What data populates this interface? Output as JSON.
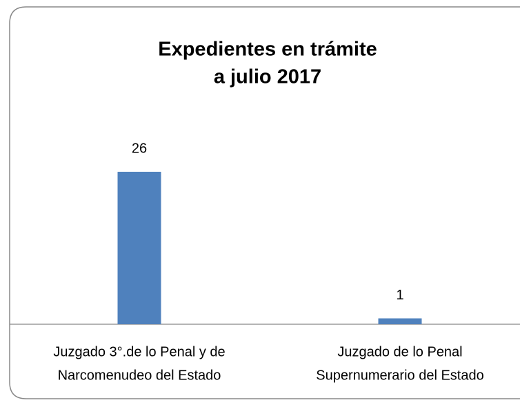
{
  "chart_data": {
    "type": "bar",
    "title": [
      "Expedientes en trámite",
      "a julio 2017"
    ],
    "categories": [
      [
        "Juzgado 3°.de lo Penal y de",
        "Narcomenudeo del Estado"
      ],
      [
        "Juzgado de lo Penal",
        "Supernumerario del Estado"
      ]
    ],
    "values": [
      26,
      1
    ],
    "color": "#4f81bd"
  }
}
